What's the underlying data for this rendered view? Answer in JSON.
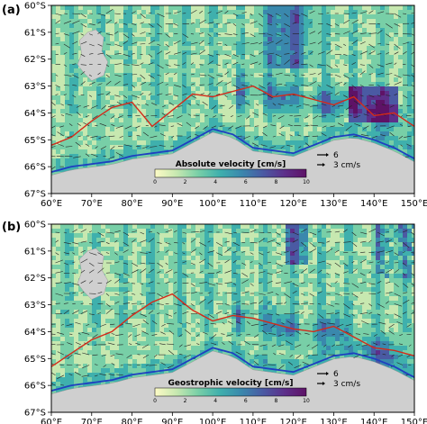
{
  "colormap": [
    "#fdfbc6",
    "#c7e8b0",
    "#78cfa7",
    "#3fb0ad",
    "#3a88ad",
    "#4a5aa3",
    "#5d2f8a",
    "#5e1266"
  ],
  "colors": {
    "land": "#cfcfcf",
    "red_front": "#d42a1a",
    "blue_front": "#1f3fc0",
    "arrow": "#222222"
  },
  "lat_ticks": [
    "60°S",
    "61°S",
    "62°S",
    "63°S",
    "64°S",
    "65°S",
    "66°S",
    "67°S"
  ],
  "lon_ticks": [
    "60°E",
    "70°E",
    "80°E",
    "90°E",
    "100°E",
    "110°E",
    "120°E",
    "130°E",
    "140°E",
    "150°E"
  ],
  "panels": [
    {
      "label": "(a)",
      "colorbar_title": "Absolute velocity [cm/s]",
      "colorbar_ticks": [
        "0",
        "2",
        "4",
        "6",
        "8",
        "10"
      ],
      "scale_labels": [
        "6",
        "3 cm/s"
      ]
    },
    {
      "label": "(b)",
      "colorbar_title": "Geostrophic velocity [cm/s]",
      "colorbar_ticks": [
        "0",
        "2",
        "4",
        "6",
        "8",
        "10"
      ],
      "scale_labels": [
        "6",
        "3 cm/s"
      ]
    }
  ]
}
